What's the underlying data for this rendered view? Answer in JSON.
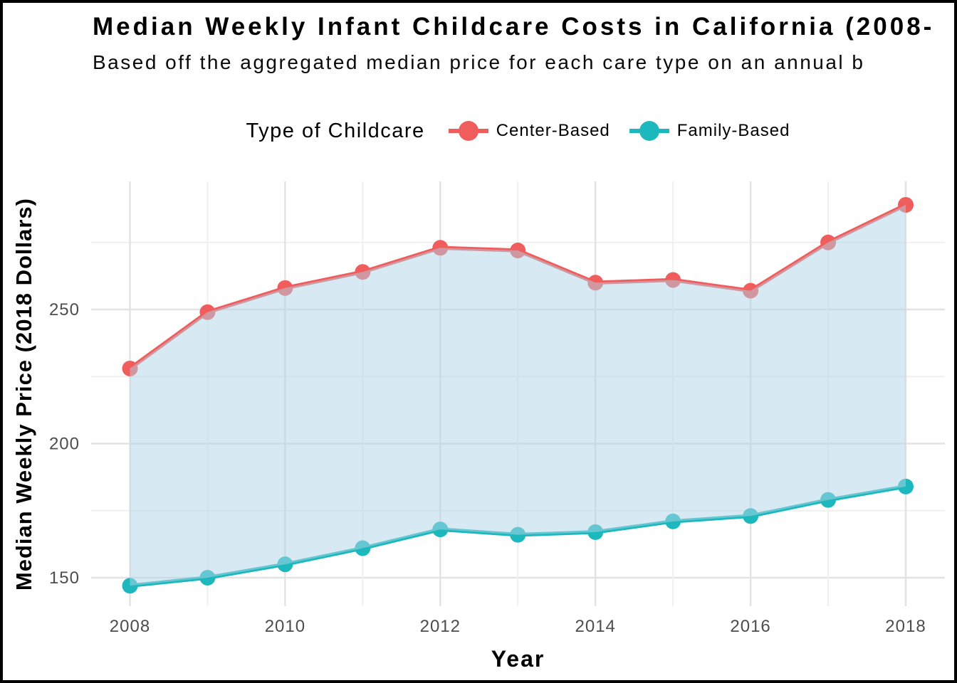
{
  "chart_data": {
    "type": "line",
    "title": "Median Weekly Infant Childcare Costs in California (2008-",
    "subtitle": "Based off the aggregated median price for each care type on an annual b",
    "legend_title": "Type of Childcare",
    "legend_position": "top",
    "xlabel": "Year",
    "ylabel": "Median Weekly Price (2018 Dollars)",
    "x": [
      2008,
      2009,
      2010,
      2011,
      2012,
      2013,
      2014,
      2015,
      2016,
      2017,
      2018
    ],
    "series": [
      {
        "name": "Center-Based",
        "color": "#EF5D5C",
        "values": [
          228,
          249,
          258,
          264,
          273,
          272,
          260,
          261,
          257,
          275,
          289
        ]
      },
      {
        "name": "Family-Based",
        "color": "#1DB8BE",
        "values": [
          147,
          150,
          155,
          161,
          168,
          166,
          167,
          171,
          173,
          179,
          184
        ]
      }
    ],
    "shaded_area_between_series": true,
    "area_fill": "rgba(175,211,229,0.5)",
    "xlim": [
      2007.5,
      2018.5
    ],
    "ylim": [
      140,
      298
    ],
    "x_tick_labels": [
      2008,
      2010,
      2012,
      2014,
      2016,
      2018
    ],
    "x_minor_gridlines": [
      2009,
      2011,
      2013,
      2015,
      2017
    ],
    "y_tick_labels": [
      150,
      200,
      250
    ],
    "y_minor_gridlines": [
      175,
      225,
      275
    ],
    "grid": true,
    "grid_major_color": "#E3E3E3",
    "grid_minor_color": "#F0F0F0",
    "tick_text_color": "#4d4d4d"
  }
}
